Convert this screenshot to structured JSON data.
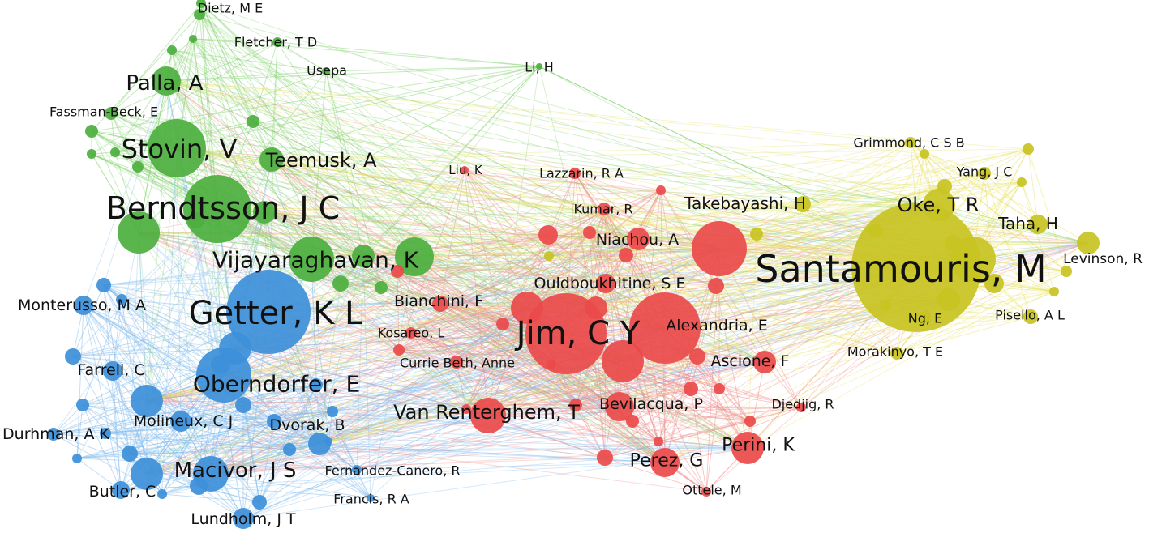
{
  "network": {
    "clusters": {
      "green": {
        "color": "#4caf3e",
        "link": "#7fd06b"
      },
      "blue": {
        "color": "#3d8fd9",
        "link": "#79b6ec"
      },
      "red": {
        "color": "#ea4a4a",
        "link": "#f08a8a"
      },
      "yellow": {
        "color": "#c8c322",
        "link": "#e6e060"
      }
    },
    "authors": [
      {
        "id": "dietz",
        "label": "Dietz, M E",
        "cluster": "green"
      },
      {
        "id": "fletcher",
        "label": "Fletcher, T D",
        "cluster": "green"
      },
      {
        "id": "usepa",
        "label": "Usepa",
        "cluster": "green"
      },
      {
        "id": "palla",
        "label": "Palla, A",
        "cluster": "green"
      },
      {
        "id": "fassman",
        "label": "Fassman-Beck, E",
        "cluster": "green"
      },
      {
        "id": "stovin",
        "label": "Stovin, V",
        "cluster": "green"
      },
      {
        "id": "teemusk",
        "label": "Teemusk, A",
        "cluster": "green"
      },
      {
        "id": "berndtsson",
        "label": "Berndtsson, J C",
        "cluster": "green"
      },
      {
        "id": "vijayaraghavan",
        "label": "Vijayaraghavan, K",
        "cluster": "green"
      },
      {
        "id": "lih",
        "label": "Li, H",
        "cluster": "green"
      },
      {
        "id": "monterusso",
        "label": "Monterusso, M A",
        "cluster": "blue"
      },
      {
        "id": "getter",
        "label": "Getter, K L",
        "cluster": "blue"
      },
      {
        "id": "farrell",
        "label": "Farrell, C",
        "cluster": "blue"
      },
      {
        "id": "oberndorfer",
        "label": "Oberndorfer, E",
        "cluster": "blue"
      },
      {
        "id": "durhman",
        "label": "Durhman, A K",
        "cluster": "blue"
      },
      {
        "id": "molineux",
        "label": "Molineux, C J",
        "cluster": "blue"
      },
      {
        "id": "dvorak",
        "label": "Dvorak, B",
        "cluster": "blue"
      },
      {
        "id": "macivor",
        "label": "Macivor, J S",
        "cluster": "blue"
      },
      {
        "id": "butler",
        "label": "Butler, C",
        "cluster": "blue"
      },
      {
        "id": "fernandez",
        "label": "Fernandez-Canero, R",
        "cluster": "blue"
      },
      {
        "id": "francis",
        "label": "Francis, R A",
        "cluster": "blue"
      },
      {
        "id": "lundholm",
        "label": "Lundholm, J T",
        "cluster": "blue"
      },
      {
        "id": "liuk",
        "label": "Liu, K",
        "cluster": "red"
      },
      {
        "id": "lazzarin",
        "label": "Lazzarin, R A",
        "cluster": "red"
      },
      {
        "id": "kumar",
        "label": "Kumar, R",
        "cluster": "red"
      },
      {
        "id": "niachou",
        "label": "Niachou, A",
        "cluster": "red"
      },
      {
        "id": "ouldboukhitine",
        "label": "Ouldboukhitine, S E",
        "cluster": "red"
      },
      {
        "id": "bianchini",
        "label": "Bianchini, F",
        "cluster": "red"
      },
      {
        "id": "kosareo",
        "label": "Kosareo, L",
        "cluster": "red"
      },
      {
        "id": "jim",
        "label": "Jim, C Y",
        "cluster": "red"
      },
      {
        "id": "alexandria",
        "label": "Alexandria, E",
        "cluster": "red"
      },
      {
        "id": "currie",
        "label": "Currie Beth, Anne",
        "cluster": "red"
      },
      {
        "id": "ascione",
        "label": "Ascione, F",
        "cluster": "red"
      },
      {
        "id": "vanrenterghem",
        "label": "Van Renterghem, T",
        "cluster": "red"
      },
      {
        "id": "bevilacqua",
        "label": "Bevilacqua, P",
        "cluster": "red"
      },
      {
        "id": "djedjig",
        "label": "Djedjig, R",
        "cluster": "red"
      },
      {
        "id": "perini",
        "label": "Perini, K",
        "cluster": "red"
      },
      {
        "id": "perez",
        "label": "Perez, G",
        "cluster": "red"
      },
      {
        "id": "ottele",
        "label": "Ottele, M",
        "cluster": "red"
      },
      {
        "id": "grimmond",
        "label": "Grimmond, C S B",
        "cluster": "yellow"
      },
      {
        "id": "yang",
        "label": "Yang, J C",
        "cluster": "yellow"
      },
      {
        "id": "takebayashi",
        "label": "Takebayashi, H",
        "cluster": "yellow"
      },
      {
        "id": "oke",
        "label": "Oke, T R",
        "cluster": "yellow"
      },
      {
        "id": "taha",
        "label": "Taha, H",
        "cluster": "yellow"
      },
      {
        "id": "santamouris",
        "label": "Santamouris, M",
        "cluster": "yellow"
      },
      {
        "id": "levinson",
        "label": "Levinson, R",
        "cluster": "yellow"
      },
      {
        "id": "nge",
        "label": "Ng, E",
        "cluster": "yellow"
      },
      {
        "id": "pisello",
        "label": "Pisello, A L",
        "cluster": "yellow"
      },
      {
        "id": "morakinyo",
        "label": "Morakinyo, T E",
        "cluster": "yellow"
      }
    ]
  }
}
